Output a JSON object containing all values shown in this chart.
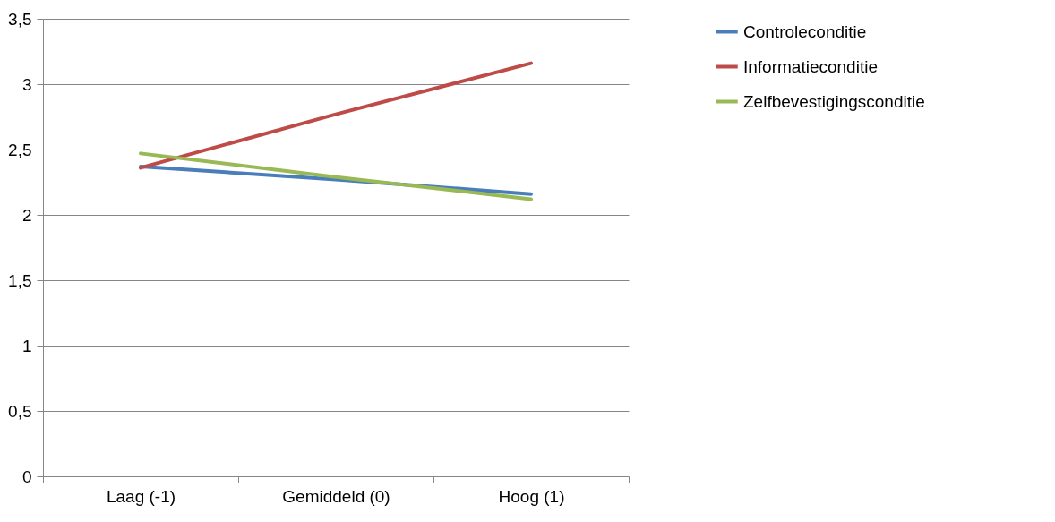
{
  "chart_data": {
    "type": "line",
    "categories": [
      "Laag (-1)",
      "Gemiddeld (0)",
      "Hoog (1)"
    ],
    "series": [
      {
        "name": "Controleconditie",
        "color": "#4a7ebb",
        "values": [
          2.37,
          2.27,
          2.16
        ]
      },
      {
        "name": "Informatieconditie",
        "color": "#be4b48",
        "values": [
          2.36,
          2.77,
          3.16
        ]
      },
      {
        "name": "Zelfbevestigingsconditie",
        "color": "#98b954",
        "values": [
          2.47,
          2.29,
          2.12
        ]
      }
    ],
    "ylim": [
      0,
      3.5
    ],
    "yticks": [
      0,
      {
        "value": 0.5,
        "label": "0,5"
      },
      1,
      {
        "value": 1.5,
        "label": "1,5"
      },
      2,
      {
        "value": 2.5,
        "label": "2,5"
      },
      3,
      {
        "value": 3.5,
        "label": "3,5"
      }
    ],
    "grid": "y",
    "legend": "right",
    "marker": "none",
    "line_style": "solid"
  }
}
